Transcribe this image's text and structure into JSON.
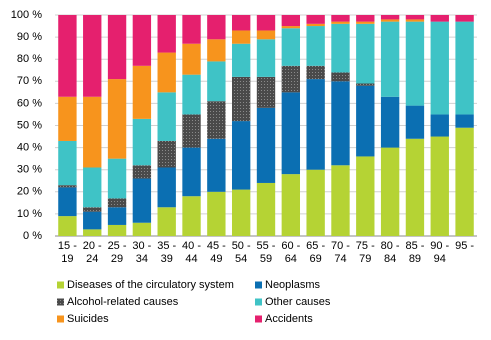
{
  "chart_data": {
    "type": "stacked-bar-100",
    "categories": [
      "15 -\n19",
      "20 -\n24",
      "25 -\n29",
      "30 -\n34",
      "35 -\n39",
      "40 -\n44",
      "45 -\n49",
      "50 -\n54",
      "55 -\n59",
      "60 -\n64",
      "65 -\n69",
      "70 -\n74",
      "75 -\n79",
      "80 -\n84",
      "85 -\n89",
      "90 -\n94",
      "95 -"
    ],
    "series": [
      {
        "name": "Diseases of the circulatory system",
        "color": "#b5d334",
        "values": [
          9,
          3,
          5,
          6,
          13,
          18,
          20,
          21,
          24,
          28,
          30,
          32,
          36,
          40,
          44,
          45,
          49
        ]
      },
      {
        "name": "Neoplasms",
        "color": "#0b6fb2",
        "values": [
          13,
          8,
          8,
          20,
          18,
          22,
          24,
          31,
          34,
          37,
          41,
          38,
          32,
          23,
          15,
          10,
          6
        ]
      },
      {
        "name": "Alcohol-related causes",
        "color": "#575757",
        "values": [
          1,
          2,
          4,
          6,
          12,
          15,
          17,
          20,
          14,
          12,
          6,
          4,
          1,
          0,
          0,
          0,
          0
        ]
      },
      {
        "name": "Other causes",
        "color": "#3fc3c6",
        "values": [
          20,
          18,
          18,
          21,
          22,
          18,
          18,
          15,
          17,
          17,
          18,
          22,
          27,
          34,
          38,
          42,
          42
        ]
      },
      {
        "name": "Suicides",
        "color": "#f7941d",
        "values": [
          20,
          32,
          36,
          24,
          18,
          14,
          10,
          6,
          4,
          1,
          1,
          1,
          1,
          1,
          1,
          0,
          0
        ]
      },
      {
        "name": "Accidents",
        "color": "#e5206e",
        "values": [
          37,
          37,
          29,
          23,
          17,
          13,
          11,
          7,
          7,
          5,
          4,
          3,
          3,
          2,
          2,
          3,
          3
        ]
      }
    ],
    "ylim": [
      0,
      100
    ],
    "yticks": [
      {
        "value": 0,
        "label": "0 %"
      },
      {
        "value": 10,
        "label": "10 %"
      },
      {
        "value": 20,
        "label": "20 %"
      },
      {
        "value": 30,
        "label": "30 %"
      },
      {
        "value": 40,
        "label": "40 %"
      },
      {
        "value": 50,
        "label": "50 %"
      },
      {
        "value": 60,
        "label": "60 %"
      },
      {
        "value": 70,
        "label": "70 %"
      },
      {
        "value": 80,
        "label": "80 %"
      },
      {
        "value": 90,
        "label": "90 %"
      },
      {
        "value": 100,
        "label": "100 %"
      }
    ],
    "grid": true
  }
}
